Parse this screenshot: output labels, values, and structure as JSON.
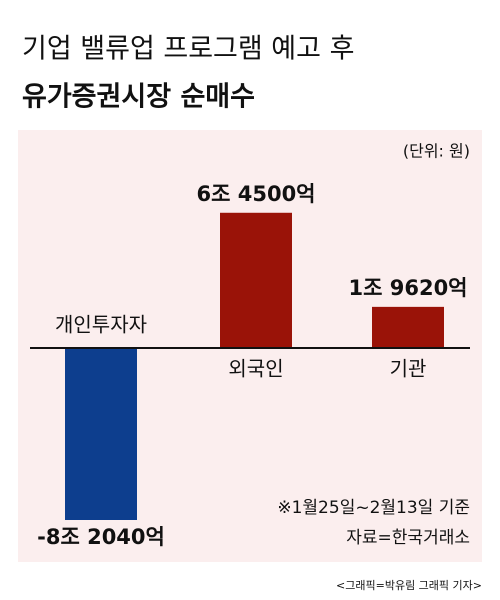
{
  "chart_data": {
    "type": "bar",
    "title": "기업 밸류업 프로그램 예고 후",
    "subtitle": "유가증권시장 순매수",
    "unit": "(단위: 원)",
    "categories": [
      "개인투자자",
      "외국인",
      "기관"
    ],
    "values": [
      -8204000000000,
      6450000000000,
      1962000000000
    ],
    "value_labels": [
      "-8조 2040억",
      "6조 4500억",
      "1조  9620억"
    ],
    "colors": [
      "#0d3e8e",
      "#9a1308",
      "#9a1308"
    ],
    "notes": [
      "※1월25일~2월13일 기준",
      "자료=한국거래소"
    ],
    "credit": "<그래픽=박유림 그래픽 기자>"
  }
}
